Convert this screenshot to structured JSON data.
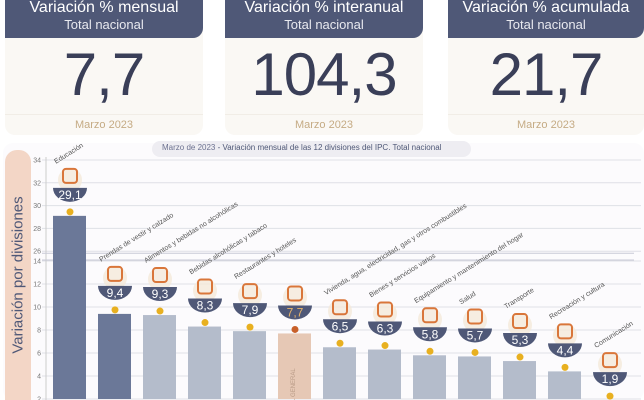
{
  "cards": [
    {
      "title": "Variación % mensual",
      "subtitle": "Total nacional",
      "value": "7,7",
      "date": "Marzo 2023"
    },
    {
      "title": "Variación % interanual",
      "subtitle": "Total nacional",
      "value": "104,3",
      "date": "Marzo 2023"
    },
    {
      "title": "Variación % acumulada",
      "subtitle": "Total nacional",
      "value": "21,7",
      "date": "Marzo 2023"
    }
  ],
  "colors": {
    "header": "#4f5877",
    "bar_dark": "#6b7898",
    "bar_light": "#b4bccb",
    "bar_general": "#e6c8b5",
    "dot": "#e8b020",
    "dot_general": "#c8602a",
    "badge": "#4f5877",
    "icon": "#d9763a"
  },
  "chart_data": {
    "type": "bar",
    "title_date": "Marzo de 2023",
    "title": " - Variación mensual de las 12 divisiones del IPC. Total nacional",
    "ylabel": "Variación por divisiones",
    "ylim": [
      2,
      34
    ],
    "axis_break": [
      14,
      26
    ],
    "yticks": [
      2,
      4,
      6,
      8,
      10,
      12,
      14,
      26,
      28,
      30,
      32,
      34
    ],
    "categories": [
      "Educación",
      "Prendas de vestir y calzado",
      "Alimentos y bebidas no alcohólicas",
      "Bebidas alcohólicas y tabaco",
      "Restaurantes y hoteles",
      "NIVEL GENERAL",
      "Vivienda, agua, electricidad, gas y otros combustibles",
      "Bienes y servicios varios",
      "Equipamiento y mantenimiento del hogar",
      "Salud",
      "Transporte",
      "Recreación y cultura",
      "Comunicación"
    ],
    "labels": [
      "29,1",
      "9,4",
      "9,3",
      "8,3",
      "7,9",
      "7,7",
      "6,5",
      "6,3",
      "5,8",
      "5,7",
      "5,3",
      "4,4",
      "1,9"
    ],
    "values": [
      29.1,
      9.4,
      9.3,
      8.3,
      7.9,
      7.7,
      6.5,
      6.3,
      5.8,
      5.7,
      5.3,
      4.4,
      1.9
    ],
    "general_label": "NIVEL GENERAL"
  }
}
